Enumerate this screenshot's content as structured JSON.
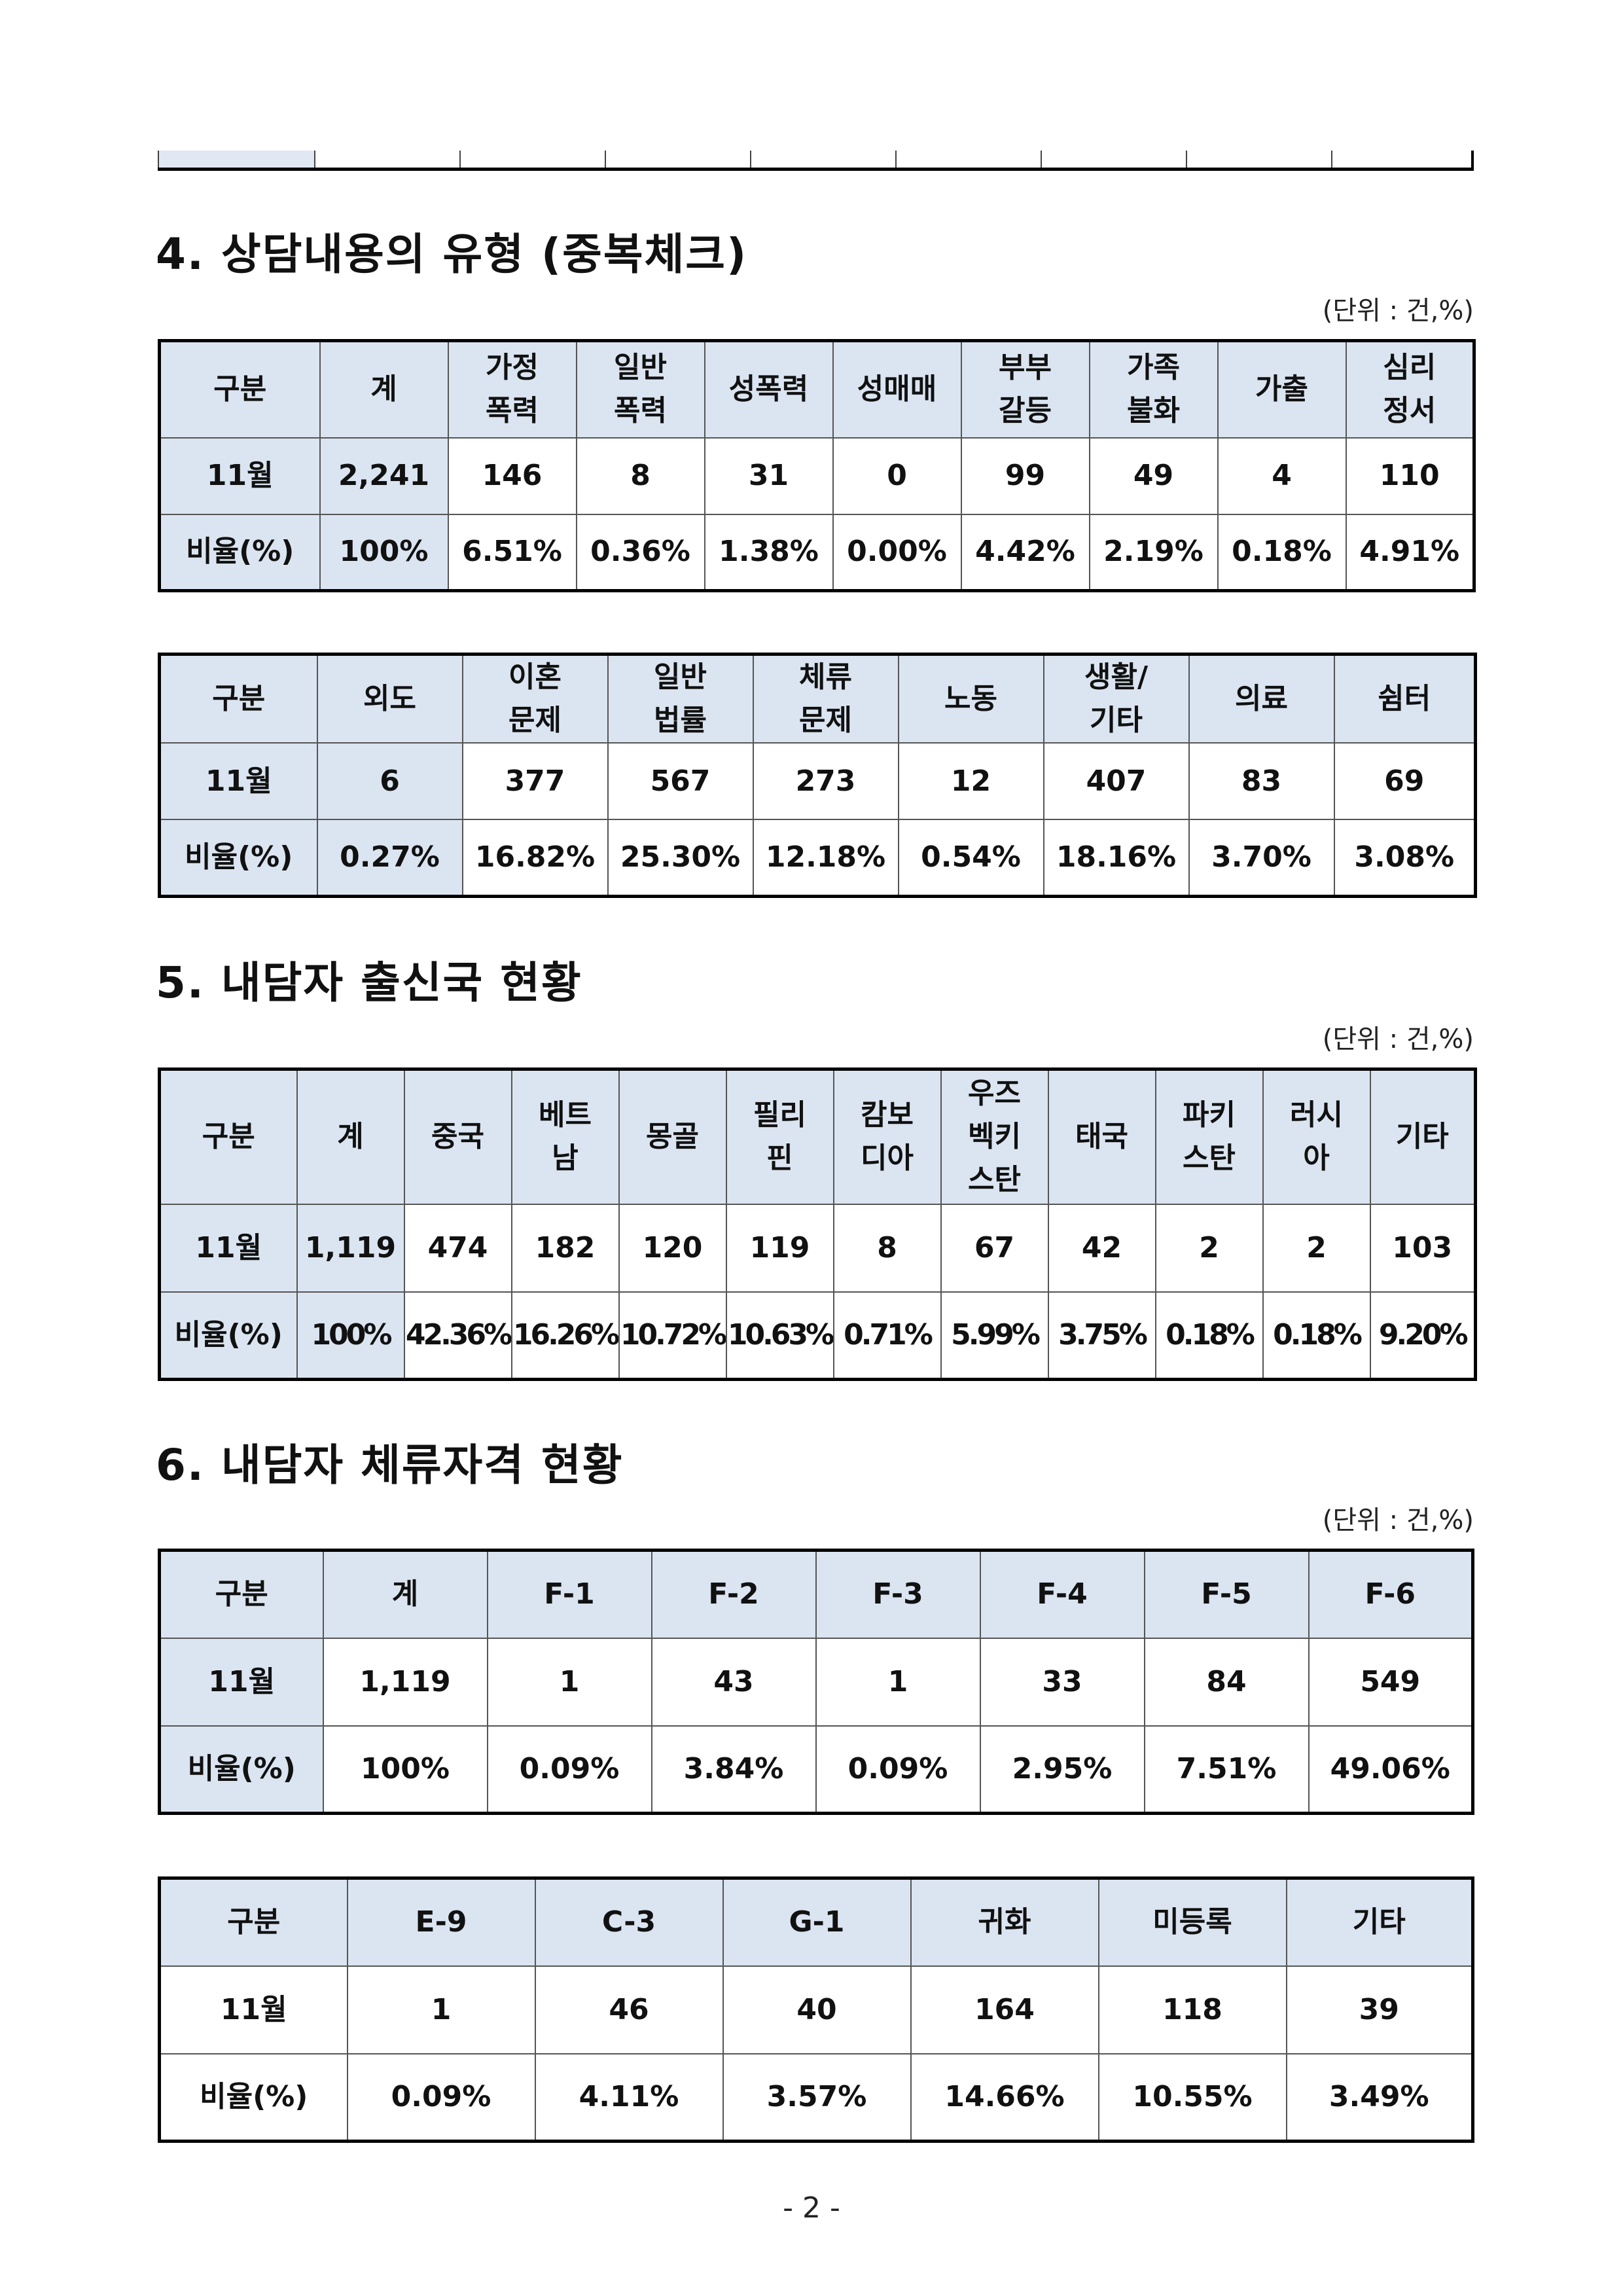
{
  "section4": {
    "title": "4. 상담내용의 유형 (중복체크)",
    "unit": "(단위 : 건,%)",
    "table_a": {
      "headers": [
        "구분",
        "계",
        "가정\n폭력",
        "일반\n폭력",
        "성폭력",
        "성매매",
        "부부\n갈등",
        "가족\n불화",
        "가출",
        "심리\n정서"
      ],
      "rows": [
        [
          "11월",
          "2,241",
          "146",
          "8",
          "31",
          "0",
          "99",
          "49",
          "4",
          "110"
        ],
        [
          "비율(%)",
          "100%",
          "6.51%",
          "0.36%",
          "1.38%",
          "0.00%",
          "4.42%",
          "2.19%",
          "0.18%",
          "4.91%"
        ]
      ]
    },
    "table_b": {
      "headers": [
        "구분",
        "외도",
        "이혼\n문제",
        "일반\n법률",
        "체류\n문제",
        "노동",
        "생활/\n기타",
        "의료",
        "쉼터"
      ],
      "rows": [
        [
          "11월",
          "6",
          "377",
          "567",
          "273",
          "12",
          "407",
          "83",
          "69"
        ],
        [
          "비율(%)",
          "0.27%",
          "16.82%",
          "25.30%",
          "12.18%",
          "0.54%",
          "18.16%",
          "3.70%",
          "3.08%"
        ]
      ]
    }
  },
  "section5": {
    "title": "5. 내담자 출신국 현황",
    "unit": "(단위 : 건,%)",
    "table": {
      "headers": [
        "구분",
        "계",
        "중국",
        "베트\n남",
        "몽골",
        "필리\n핀",
        "캄보\n디아",
        "우즈\n벡키\n스탄",
        "태국",
        "파키\n스탄",
        "러시\n아",
        "기타"
      ],
      "rows": [
        [
          "11월",
          "1,119",
          "474",
          "182",
          "120",
          "119",
          "8",
          "67",
          "42",
          "2",
          "2",
          "103"
        ],
        [
          "비율(%)",
          "100%",
          "42.36%",
          "16.26%",
          "10.72%",
          "10.63%",
          "0.71%",
          "5.99%",
          "3.75%",
          "0.18%",
          "0.18%",
          "9.20%"
        ]
      ]
    }
  },
  "section6": {
    "title": "6. 내담자 체류자격 현황",
    "unit": "(단위 : 건,%)",
    "table_a": {
      "headers": [
        "구분",
        "계",
        "F-1",
        "F-2",
        "F-3",
        "F-4",
        "F-5",
        "F-6"
      ],
      "rows": [
        [
          "11월",
          "1,119",
          "1",
          "43",
          "1",
          "33",
          "84",
          "549"
        ],
        [
          "비율(%)",
          "100%",
          "0.09%",
          "3.84%",
          "0.09%",
          "2.95%",
          "7.51%",
          "49.06%"
        ]
      ]
    },
    "table_b": {
      "headers": [
        "구분",
        "E-9",
        "C-3",
        "G-1",
        "귀화",
        "미등록",
        "기타"
      ],
      "rows": [
        [
          "11월",
          "1",
          "46",
          "40",
          "164",
          "118",
          "39"
        ],
        [
          "비율(%)",
          "0.09%",
          "4.11%",
          "3.57%",
          "14.66%",
          "10.55%",
          "3.49%"
        ]
      ]
    }
  },
  "footer": {
    "page_number": "- 2 -"
  }
}
